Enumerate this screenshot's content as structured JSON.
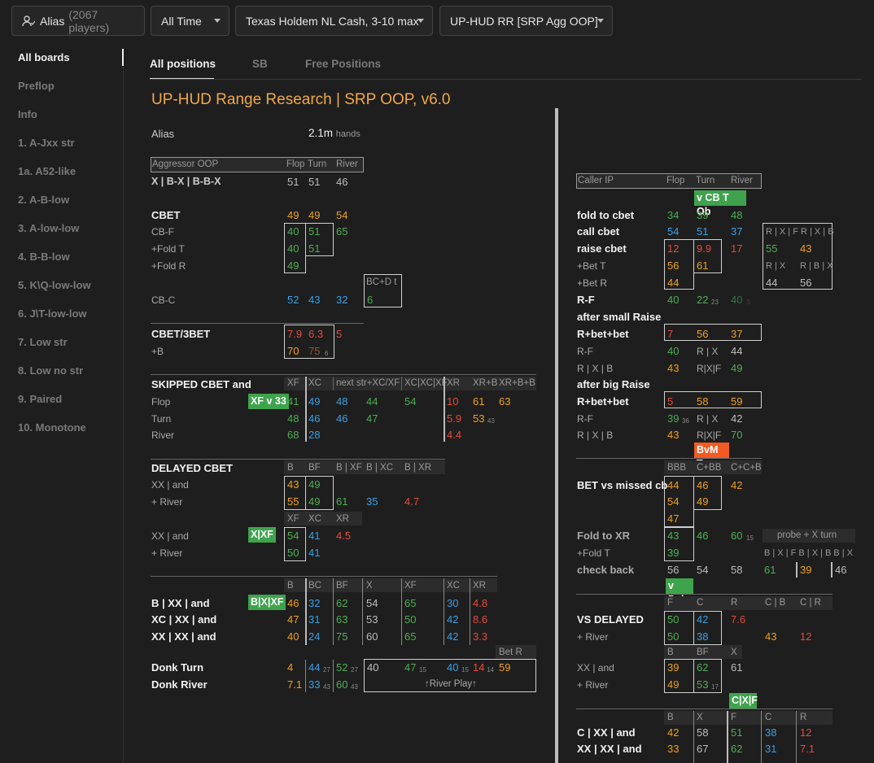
{
  "toolbar": {
    "alias": "Alias",
    "players": "(2067 players)",
    "time": "All Time",
    "game": "Texas Holdem NL Cash, 3-10 max",
    "hud": "UP-HUD RR [SRP Agg OOP]"
  },
  "sidebar": [
    "All boards",
    "Preflop",
    "Info",
    "1. A-Jxx str",
    "1a. A52-like",
    "2. A-B-low",
    "3. A-low-low",
    "4. B-B-low",
    "5. K\\Q-low-low",
    "6. J\\T-low-low",
    "7. Low str",
    "8. Low no str",
    "9. Paired",
    "10. Monotone"
  ],
  "tabs": [
    "All positions",
    "SB",
    "Free Positions"
  ],
  "title": "UP-HUD Range Research | SRP OOP, v6.0",
  "alias_row": {
    "label": "Alias",
    "value": "2.1m",
    "unit": "hands"
  },
  "left": {
    "agg_header": [
      "Aggressor OOP",
      "Flop",
      "Turn",
      "River"
    ],
    "xbx_label": "X | B-X | B-B-X",
    "xbx": [
      "51",
      "51",
      "46"
    ],
    "cbet": "CBET",
    "cbet_vals": [
      "49",
      "49",
      "54"
    ],
    "cbf": "CB-F",
    "cbf_vals": [
      "40",
      "51",
      "65"
    ],
    "foldT": "+Fold T",
    "foldT_vals": [
      "40",
      "51"
    ],
    "foldR": "+Fold R",
    "foldR_vals": [
      "49"
    ],
    "bcdt": "BC+D t",
    "cbc": "CB-C",
    "cbc_vals": [
      "52",
      "43",
      "32",
      "6"
    ],
    "cbet3": "CBET/3BET",
    "cbet3_vals": [
      "7.9",
      "6.3",
      "5"
    ],
    "plusB": "+B",
    "plusB_vals": [
      "70",
      "75",
      "6"
    ],
    "skipped": "SKIPPED CBET and",
    "skip_hdr": [
      "XF",
      "XC",
      "next str+XC/XF",
      "XC|XC|XF",
      "XR",
      "XR+B",
      "XR+B+B"
    ],
    "xfv33": "XF v 33",
    "flop": "Flop",
    "flop_vals": [
      "41",
      "49",
      "48",
      "44",
      "54",
      "10",
      "61",
      "63"
    ],
    "turn": "Turn",
    "turn_vals": [
      "48",
      "46",
      "46",
      "47",
      "5.9",
      "53",
      "43"
    ],
    "river": "River",
    "river_vals": [
      "68",
      "28",
      "4.4"
    ],
    "delayed": "DELAYED CBET",
    "del_hdr": [
      "B",
      "BF",
      "B | XF",
      "B | XC",
      "B | XR"
    ],
    "xxand": "XX | and",
    "xx_vals": [
      "43",
      "49"
    ],
    "plusRiver": "+ River",
    "pr_vals": [
      "55",
      "49",
      "61",
      "35",
      "4.7"
    ],
    "xfxcxr": [
      "XF",
      "XC",
      "XR"
    ],
    "xxand2": "XX | and",
    "xxf": "X|XF",
    "xx2_vals": [
      "54",
      "41",
      "4.5"
    ],
    "plusRiver2": "+ River",
    "pr2_vals": [
      "50",
      "41"
    ],
    "bxx_hdr": [
      "B",
      "BC",
      "BF",
      "X",
      "XF",
      "XC",
      "XR"
    ],
    "bxxf": "B|X|XF",
    "bxx": "B | XX | and",
    "bxx_vals": [
      "46",
      "32",
      "62",
      "54",
      "65",
      "30",
      "4.8"
    ],
    "xcxx": "XC | XX | and",
    "xcxx_vals": [
      "47",
      "31",
      "63",
      "53",
      "50",
      "42",
      "8.6"
    ],
    "xxxx": "XX | XX | and",
    "xxxx_vals": [
      "40",
      "24",
      "75",
      "60",
      "65",
      "42",
      "3.3"
    ],
    "betR": "Bet R",
    "donkT": "Donk Turn",
    "donkT_vals": [
      "4",
      "44",
      "27",
      "52",
      "27",
      "40",
      "47",
      "15",
      "40",
      "15",
      "14",
      "14",
      "59"
    ],
    "donkR": "Donk River",
    "donkR_vals": [
      "7.1",
      "33",
      "43",
      "60",
      "43"
    ],
    "riverPlay": "↑River Play↑"
  },
  "right": {
    "hdr": [
      "Caller IP",
      "Flop",
      "Turn",
      "River"
    ],
    "vcbtob": "v CB T Ob",
    "ftc": "fold to cbet",
    "ftc_vals": [
      "34",
      "39",
      "48"
    ],
    "cc": "call cbet",
    "cc_vals": [
      "54",
      "51",
      "37"
    ],
    "xfxb": "R | X | F R | X | B",
    "rc": "raise cbet",
    "rc_vals": [
      "12",
      "9.9",
      "17",
      "55",
      "43"
    ],
    "bt": "+Bet T",
    "bt_vals": [
      "56",
      "61"
    ],
    "rx": "R | X",
    "rbx": "R | B | X",
    "br": "+Bet R",
    "br_vals": [
      "44",
      "44",
      "56"
    ],
    "rf": "R-F",
    "rf_vals": [
      "40",
      "22",
      "23",
      "40",
      "5"
    ],
    "asr": "after small Raise",
    "rbb": "R+bet+bet",
    "rbb_vals": [
      "7",
      "56",
      "37"
    ],
    "rf2": "R-F",
    "rf2_vals": [
      "40",
      "R | X",
      "44"
    ],
    "rxb": "R | X | B",
    "rxb_vals": [
      "43",
      "R|X|F",
      "49"
    ],
    "abr": "after big Raise",
    "rbb2": "R+bet+bet",
    "rbb2_vals": [
      "5",
      "58",
      "59"
    ],
    "rf3": "R-F",
    "rf3_vals": [
      "39",
      "36",
      "R | X",
      "42"
    ],
    "rxb2": "R | X | B",
    "rxb2_vals": [
      "43",
      "R|X|F",
      "70"
    ],
    "bvmt": "BvM T",
    "bbb_hdr": [
      "BBB",
      "C+BB",
      "C+C+B"
    ],
    "bvm": "BET vs missed cb",
    "bvm_vals": [
      "44",
      "46",
      "42",
      "54",
      "49",
      "47"
    ],
    "ftxr": "Fold to XR",
    "ftxr_vals": [
      "43",
      "46",
      "60",
      "15"
    ],
    "probe": "probe + X turn",
    "foldT": "+Fold T",
    "foldT_vals": [
      "39"
    ],
    "bxf": "B | X | F B | X | B B | X",
    "cb": "check back",
    "cb_vals": [
      "56",
      "54",
      "58",
      "61",
      "39",
      "46"
    ],
    "vdel": "v Del",
    "vd_hdr": [
      "F",
      "C",
      "R",
      "C | B",
      "C | R"
    ],
    "vsd": "VS DELAYED",
    "vsd_vals": [
      "50",
      "42",
      "7.6"
    ],
    "pr": "+ River",
    "pr_vals": [
      "50",
      "38",
      "43",
      "12"
    ],
    "bbfx": [
      "B",
      "BF",
      "X"
    ],
    "xxa": "XX | and",
    "xxa_vals": [
      "39",
      "62",
      "61"
    ],
    "pr2": "+ River",
    "pr2_vals": [
      "49",
      "53",
      "17"
    ],
    "cxf": "C|X|F",
    "last_hdr": [
      "B",
      "X",
      "F",
      "C",
      "R"
    ],
    "cxx": "C | XX | and",
    "cxx_vals": [
      "42",
      "58",
      "51",
      "38",
      "12"
    ],
    "xxxx": "XX | XX | and",
    "xxxx_vals": [
      "33",
      "67",
      "62",
      "31",
      "7.1"
    ]
  }
}
